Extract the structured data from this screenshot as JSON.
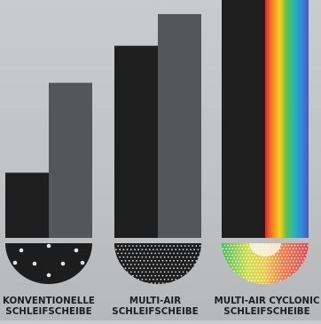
{
  "chart_data": {
    "type": "bar",
    "title": "",
    "xlabel": "",
    "ylabel": "",
    "ylim": [
      0,
      270
    ],
    "grid": false,
    "legend": "none",
    "categories": [
      [
        "KONVENTIONELLE",
        "SCHLEIFSCHEIBE"
      ],
      [
        "MULTI-AIR",
        "SCHLEIFSCHEIBE"
      ],
      [
        "MULTI-AIR CYCLONIC",
        "SCHLEIFSCHEIBE"
      ]
    ],
    "series": [
      {
        "values": [
          74,
          218,
          270
        ],
        "color": "#1f1e1f"
      },
      {
        "values": [
          176,
          254,
          270
        ],
        "color": "#555657"
      }
    ],
    "rainbow_bar_category_index": 2
  },
  "icons": [
    "sanding-disc-few-holes-icon",
    "sanding-disc-multi-air-icon",
    "sanding-disc-cyclonic-icon"
  ],
  "colors": {
    "disc": "#1d1d1d",
    "label": "#1f1f1f",
    "background": "#c5c7c9"
  }
}
